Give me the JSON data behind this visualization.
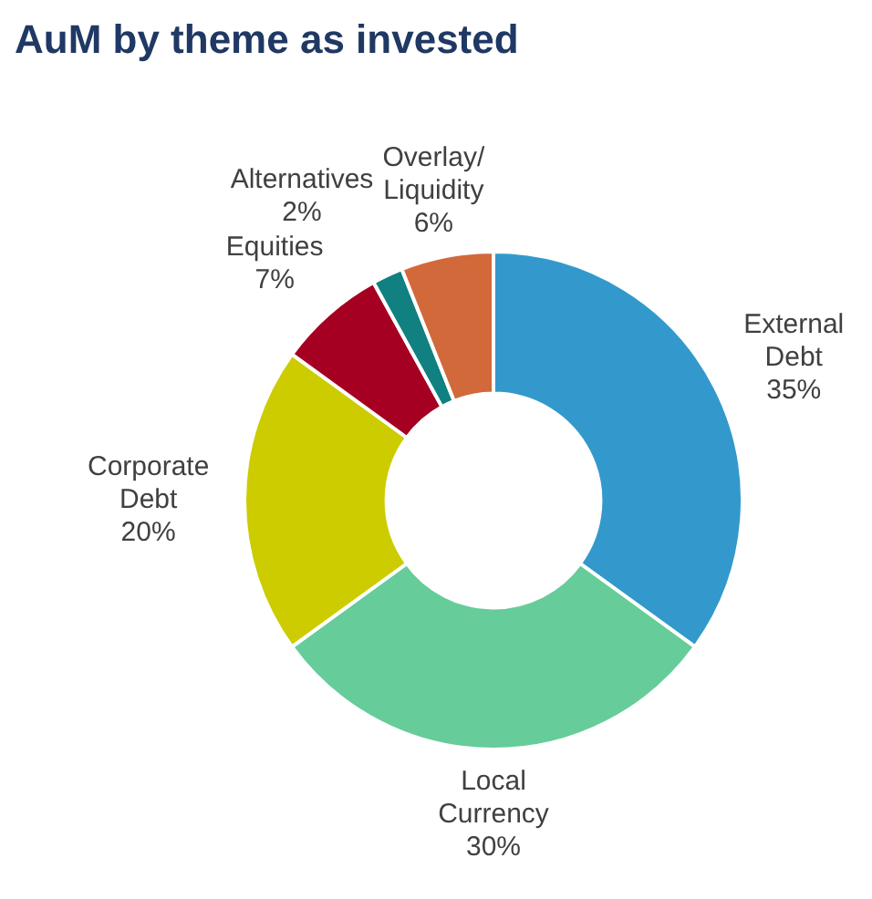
{
  "chart_data": {
    "type": "donut",
    "title": "AuM by theme as invested",
    "categories": [
      "External Debt",
      "Local Currency",
      "Corporate Debt",
      "Equities",
      "Alternatives",
      "Overlay/Liquidity"
    ],
    "values": [
      35,
      30,
      20,
      7,
      2,
      6
    ],
    "value_labels": [
      "35%",
      "30%",
      "20%",
      "7%",
      "2%",
      "6%"
    ],
    "colors": [
      "#3399cc",
      "#66cc99",
      "#cccc00",
      "#a50021",
      "#108080",
      "#d2693a"
    ],
    "legend": false
  }
}
